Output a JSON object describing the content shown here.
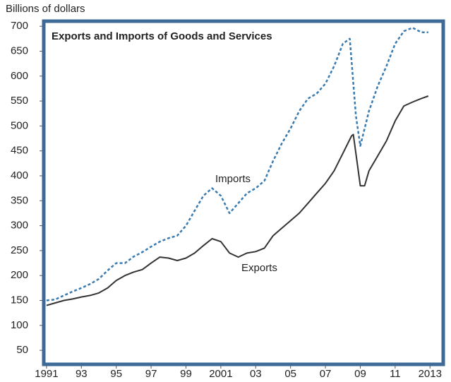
{
  "chart_data": {
    "type": "line",
    "title": "Exports and Imports of Goods and Services",
    "y_label": "Billions of dollars",
    "annotations": [
      "Imports",
      "Exports"
    ],
    "xlim": [
      1990.76,
      2013.84
    ],
    "xticks": [
      {
        "value": 1991,
        "label": "1991"
      },
      {
        "value": 1993,
        "label": "93"
      },
      {
        "value": 1995,
        "label": "95"
      },
      {
        "value": 1997,
        "label": "97"
      },
      {
        "value": 1999,
        "label": "99"
      },
      {
        "value": 2001,
        "label": "2001"
      },
      {
        "value": 2003,
        "label": "03"
      },
      {
        "value": 2005,
        "label": "05"
      },
      {
        "value": 2007,
        "label": "07"
      },
      {
        "value": 2009,
        "label": "09"
      },
      {
        "value": 2011,
        "label": "11"
      },
      {
        "value": 2013,
        "label": "2013"
      }
    ],
    "ylim": [
      19,
      713
    ],
    "yticks": [
      50,
      100,
      150,
      200,
      250,
      300,
      350,
      400,
      450,
      500,
      550,
      600,
      650,
      700
    ],
    "series": [
      {
        "name": "Exports",
        "color": "#333333",
        "dashed": false,
        "x": [
          1991,
          1991.5,
          1992,
          1992.5,
          1993,
          1993.5,
          1994,
          1994.5,
          1995,
          1995.5,
          1996,
          1996.5,
          1997,
          1997.5,
          1998,
          1998.5,
          1999,
          1999.5,
          2000,
          2000.5,
          2001,
          2001.5,
          2002,
          2002.5,
          2003,
          2003.5,
          2004,
          2004.5,
          2005,
          2005.5,
          2006,
          2006.5,
          2007,
          2007.5,
          2008,
          2008.5,
          2008.6,
          2009,
          2009.25,
          2009.5,
          2010,
          2010.5,
          2011,
          2011.5,
          2012,
          2012.5,
          2012.9
        ],
        "values": [
          140,
          145,
          150,
          153,
          157,
          160,
          165,
          175,
          190,
          200,
          207,
          212,
          225,
          237,
          235,
          230,
          235,
          245,
          260,
          274,
          268,
          245,
          237,
          245,
          248,
          255,
          280,
          295,
          310,
          325,
          345,
          365,
          385,
          410,
          445,
          480,
          483,
          380,
          380,
          410,
          440,
          470,
          510,
          540,
          548,
          555,
          560
        ]
      },
      {
        "name": "Imports",
        "color": "#3a7bb0",
        "dashed": true,
        "x": [
          1991,
          1991.5,
          1992,
          1992.5,
          1993,
          1993.5,
          1994,
          1994.5,
          1995,
          1995.5,
          1996,
          1996.5,
          1997,
          1997.5,
          1998,
          1998.5,
          1999,
          1999.5,
          2000,
          2000.5,
          2001,
          2001.5,
          2002,
          2002.5,
          2003,
          2003.5,
          2004,
          2004.5,
          2005,
          2005.5,
          2006,
          2006.5,
          2007,
          2007.5,
          2008,
          2008.4,
          2008.75,
          2009,
          2009.5,
          2010,
          2010.5,
          2011,
          2011.5,
          2012,
          2012.5,
          2012.9
        ],
        "values": [
          150,
          152,
          160,
          168,
          175,
          183,
          193,
          210,
          225,
          225,
          238,
          247,
          258,
          268,
          275,
          280,
          300,
          330,
          360,
          375,
          360,
          325,
          345,
          365,
          375,
          390,
          430,
          465,
          495,
          530,
          555,
          565,
          585,
          620,
          665,
          675,
          520,
          460,
          530,
          580,
          620,
          665,
          690,
          697,
          688,
          688
        ]
      }
    ]
  }
}
